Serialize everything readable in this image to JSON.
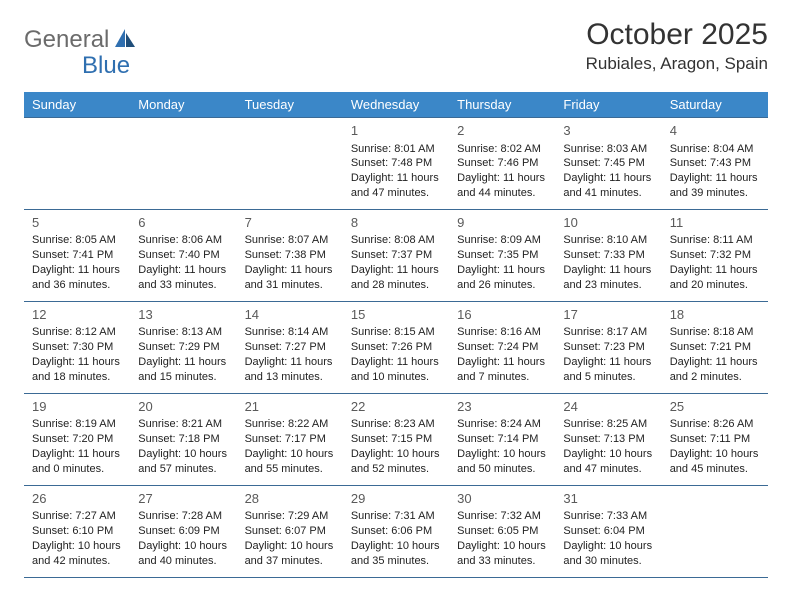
{
  "logo": {
    "text1": "General",
    "text2": "Blue"
  },
  "title": "October 2025",
  "location": "Rubiales, Aragon, Spain",
  "colors": {
    "header_bg": "#3b87c8",
    "header_text": "#ffffff",
    "border": "#3b6a95",
    "logo_gray": "#6b6b6b",
    "logo_blue": "#2f6fb0"
  },
  "day_headers": [
    "Sunday",
    "Monday",
    "Tuesday",
    "Wednesday",
    "Thursday",
    "Friday",
    "Saturday"
  ],
  "weeks": [
    [
      null,
      null,
      null,
      {
        "n": "1",
        "sr": "8:01 AM",
        "ss": "7:48 PM",
        "dl": "11 hours and 47 minutes."
      },
      {
        "n": "2",
        "sr": "8:02 AM",
        "ss": "7:46 PM",
        "dl": "11 hours and 44 minutes."
      },
      {
        "n": "3",
        "sr": "8:03 AM",
        "ss": "7:45 PM",
        "dl": "11 hours and 41 minutes."
      },
      {
        "n": "4",
        "sr": "8:04 AM",
        "ss": "7:43 PM",
        "dl": "11 hours and 39 minutes."
      }
    ],
    [
      {
        "n": "5",
        "sr": "8:05 AM",
        "ss": "7:41 PM",
        "dl": "11 hours and 36 minutes."
      },
      {
        "n": "6",
        "sr": "8:06 AM",
        "ss": "7:40 PM",
        "dl": "11 hours and 33 minutes."
      },
      {
        "n": "7",
        "sr": "8:07 AM",
        "ss": "7:38 PM",
        "dl": "11 hours and 31 minutes."
      },
      {
        "n": "8",
        "sr": "8:08 AM",
        "ss": "7:37 PM",
        "dl": "11 hours and 28 minutes."
      },
      {
        "n": "9",
        "sr": "8:09 AM",
        "ss": "7:35 PM",
        "dl": "11 hours and 26 minutes."
      },
      {
        "n": "10",
        "sr": "8:10 AM",
        "ss": "7:33 PM",
        "dl": "11 hours and 23 minutes."
      },
      {
        "n": "11",
        "sr": "8:11 AM",
        "ss": "7:32 PM",
        "dl": "11 hours and 20 minutes."
      }
    ],
    [
      {
        "n": "12",
        "sr": "8:12 AM",
        "ss": "7:30 PM",
        "dl": "11 hours and 18 minutes."
      },
      {
        "n": "13",
        "sr": "8:13 AM",
        "ss": "7:29 PM",
        "dl": "11 hours and 15 minutes."
      },
      {
        "n": "14",
        "sr": "8:14 AM",
        "ss": "7:27 PM",
        "dl": "11 hours and 13 minutes."
      },
      {
        "n": "15",
        "sr": "8:15 AM",
        "ss": "7:26 PM",
        "dl": "11 hours and 10 minutes."
      },
      {
        "n": "16",
        "sr": "8:16 AM",
        "ss": "7:24 PM",
        "dl": "11 hours and 7 minutes."
      },
      {
        "n": "17",
        "sr": "8:17 AM",
        "ss": "7:23 PM",
        "dl": "11 hours and 5 minutes."
      },
      {
        "n": "18",
        "sr": "8:18 AM",
        "ss": "7:21 PM",
        "dl": "11 hours and 2 minutes."
      }
    ],
    [
      {
        "n": "19",
        "sr": "8:19 AM",
        "ss": "7:20 PM",
        "dl": "11 hours and 0 minutes."
      },
      {
        "n": "20",
        "sr": "8:21 AM",
        "ss": "7:18 PM",
        "dl": "10 hours and 57 minutes."
      },
      {
        "n": "21",
        "sr": "8:22 AM",
        "ss": "7:17 PM",
        "dl": "10 hours and 55 minutes."
      },
      {
        "n": "22",
        "sr": "8:23 AM",
        "ss": "7:15 PM",
        "dl": "10 hours and 52 minutes."
      },
      {
        "n": "23",
        "sr": "8:24 AM",
        "ss": "7:14 PM",
        "dl": "10 hours and 50 minutes."
      },
      {
        "n": "24",
        "sr": "8:25 AM",
        "ss": "7:13 PM",
        "dl": "10 hours and 47 minutes."
      },
      {
        "n": "25",
        "sr": "8:26 AM",
        "ss": "7:11 PM",
        "dl": "10 hours and 45 minutes."
      }
    ],
    [
      {
        "n": "26",
        "sr": "7:27 AM",
        "ss": "6:10 PM",
        "dl": "10 hours and 42 minutes."
      },
      {
        "n": "27",
        "sr": "7:28 AM",
        "ss": "6:09 PM",
        "dl": "10 hours and 40 minutes."
      },
      {
        "n": "28",
        "sr": "7:29 AM",
        "ss": "6:07 PM",
        "dl": "10 hours and 37 minutes."
      },
      {
        "n": "29",
        "sr": "7:31 AM",
        "ss": "6:06 PM",
        "dl": "10 hours and 35 minutes."
      },
      {
        "n": "30",
        "sr": "7:32 AM",
        "ss": "6:05 PM",
        "dl": "10 hours and 33 minutes."
      },
      {
        "n": "31",
        "sr": "7:33 AM",
        "ss": "6:04 PM",
        "dl": "10 hours and 30 minutes."
      },
      null
    ]
  ],
  "labels": {
    "sunrise": "Sunrise:",
    "sunset": "Sunset:",
    "daylight": "Daylight:"
  }
}
